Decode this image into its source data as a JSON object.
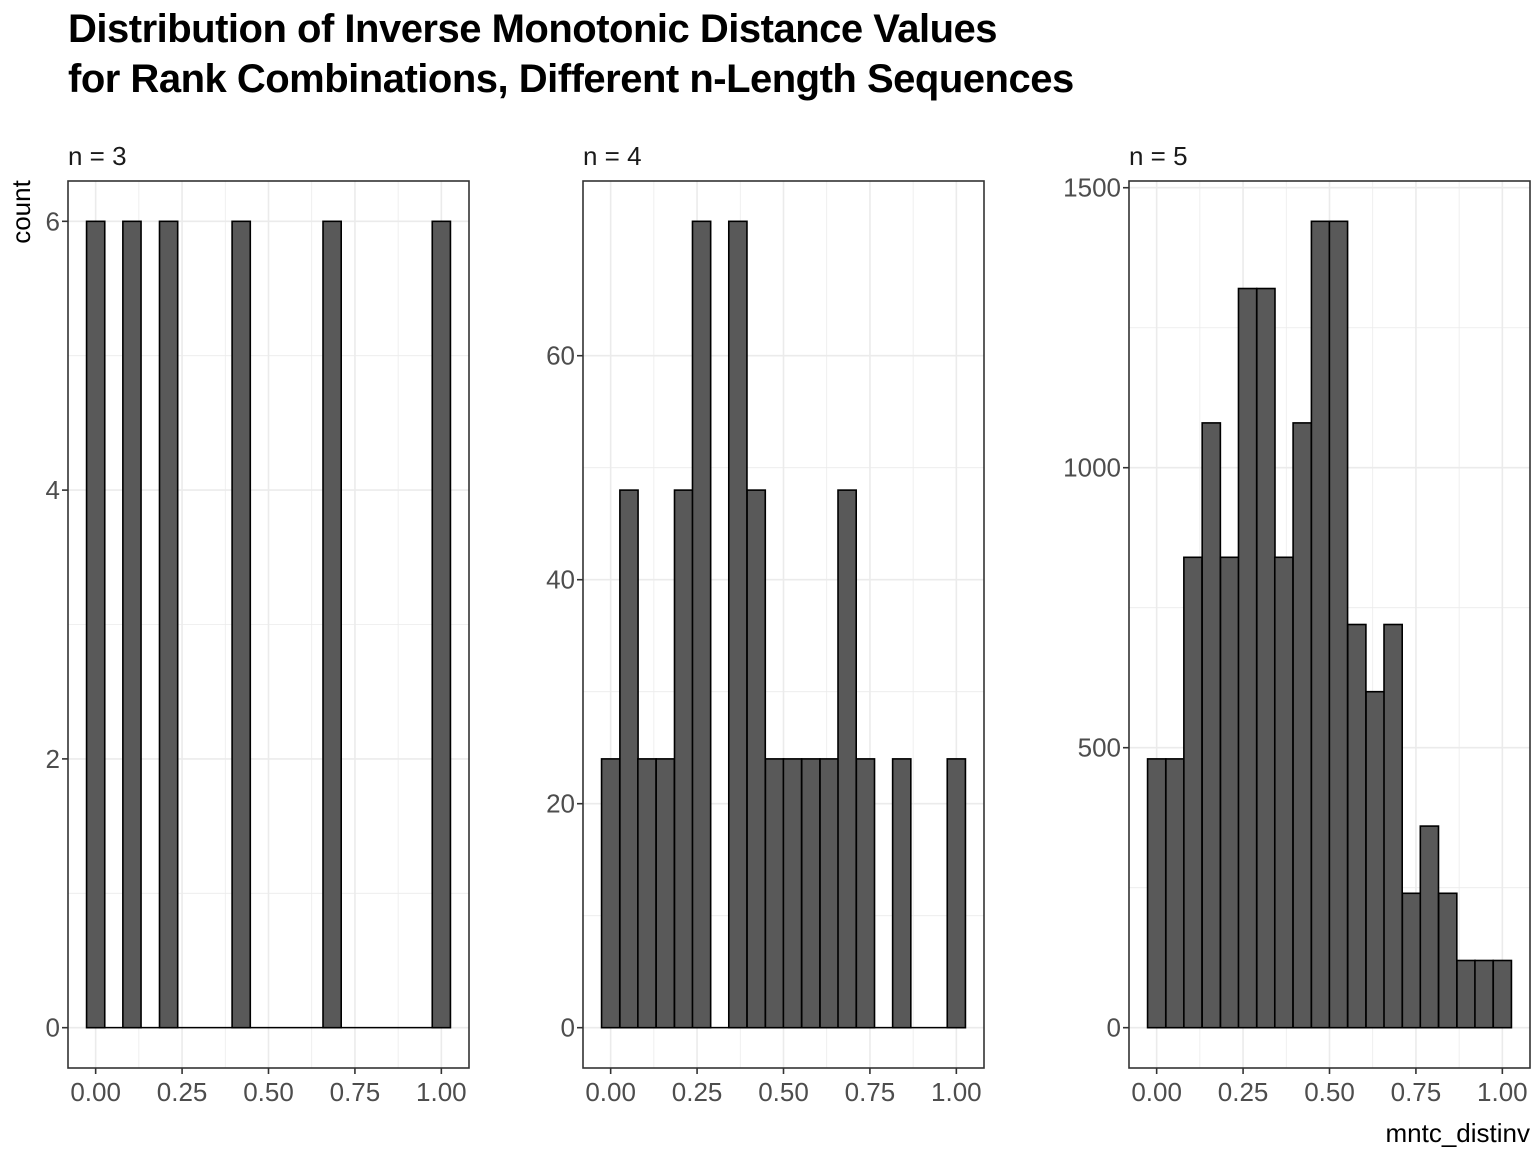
{
  "title": {
    "line1": "Distribution of Inverse Monotonic Distance Values",
    "line2": "for Rank Combinations, Different n-Length Sequences"
  },
  "colors": {
    "bar_fill": "#595959",
    "bar_stroke": "#000000",
    "grid": "#ebebeb",
    "panel_border": "#333333"
  },
  "chart_data": {
    "type": "bar",
    "title": "Distribution of Inverse Monotonic Distance Values for Rank Combinations, Different n-Length Sequences",
    "xlabel": "mntc_distinv",
    "ylabel": "count",
    "grid": true,
    "panels": [
      {
        "label": "n = 3",
        "xlim": [
          -0.08,
          1.08
        ],
        "ylim": [
          -0.3,
          6.3
        ],
        "x_ticks": [
          "0.00",
          "0.25",
          "0.50",
          "0.75",
          "1.00"
        ],
        "y_ticks": [
          0,
          2,
          4,
          6
        ],
        "bin_width": 0.0526,
        "bins": [
          {
            "x": 0.0,
            "count": 6
          },
          {
            "x": 0.105,
            "count": 6
          },
          {
            "x": 0.211,
            "count": 6
          },
          {
            "x": 0.316,
            "count": 0
          },
          {
            "x": 0.421,
            "count": 6
          },
          {
            "x": 0.526,
            "count": 0
          },
          {
            "x": 0.632,
            "count": 0
          },
          {
            "x": 0.684,
            "count": 6
          },
          {
            "x": 0.842,
            "count": 0
          },
          {
            "x": 1.0,
            "count": 6
          }
        ]
      },
      {
        "label": "n = 4",
        "xlim": [
          -0.08,
          1.08
        ],
        "ylim": [
          -3.6,
          75.6
        ],
        "x_ticks": [
          "0.00",
          "0.25",
          "0.50",
          "0.75",
          "1.00"
        ],
        "y_ticks": [
          0,
          20,
          40,
          60
        ],
        "bin_width": 0.0526,
        "bins": [
          {
            "x": 0.0,
            "count": 24
          },
          {
            "x": 0.053,
            "count": 48
          },
          {
            "x": 0.105,
            "count": 24
          },
          {
            "x": 0.158,
            "count": 24
          },
          {
            "x": 0.211,
            "count": 48
          },
          {
            "x": 0.263,
            "count": 72
          },
          {
            "x": 0.316,
            "count": 0
          },
          {
            "x": 0.368,
            "count": 72
          },
          {
            "x": 0.421,
            "count": 48
          },
          {
            "x": 0.474,
            "count": 24
          },
          {
            "x": 0.526,
            "count": 24
          },
          {
            "x": 0.579,
            "count": 24
          },
          {
            "x": 0.632,
            "count": 24
          },
          {
            "x": 0.684,
            "count": 48
          },
          {
            "x": 0.737,
            "count": 24
          },
          {
            "x": 0.789,
            "count": 0
          },
          {
            "x": 0.842,
            "count": 24
          },
          {
            "x": 0.895,
            "count": 0
          },
          {
            "x": 0.947,
            "count": 0
          },
          {
            "x": 1.0,
            "count": 24
          }
        ]
      },
      {
        "label": "n = 5",
        "xlim": [
          -0.08,
          1.08
        ],
        "ylim": [
          -72,
          1512
        ],
        "x_ticks": [
          "0.00",
          "0.25",
          "0.50",
          "0.75",
          "1.00"
        ],
        "y_ticks": [
          0,
          500,
          1000,
          1500
        ],
        "bin_width": 0.0526,
        "bins": [
          {
            "x": 0.0,
            "count": 480
          },
          {
            "x": 0.053,
            "count": 480
          },
          {
            "x": 0.105,
            "count": 840
          },
          {
            "x": 0.158,
            "count": 840
          },
          {
            "x": 0.158,
            "count": 1080
          },
          {
            "x": 0.211,
            "count": 840
          },
          {
            "x": 0.263,
            "count": 1320
          },
          {
            "x": 0.316,
            "count": 1320
          },
          {
            "x": 0.368,
            "count": 840
          },
          {
            "x": 0.421,
            "count": 1080
          },
          {
            "x": 0.474,
            "count": 1440
          },
          {
            "x": 0.526,
            "count": 1440
          },
          {
            "x": 0.579,
            "count": 720
          },
          {
            "x": 0.632,
            "count": 600
          },
          {
            "x": 0.684,
            "count": 720
          },
          {
            "x": 0.737,
            "count": 240
          },
          {
            "x": 0.789,
            "count": 360
          },
          {
            "x": 0.842,
            "count": 240
          },
          {
            "x": 0.895,
            "count": 120
          },
          {
            "x": 0.947,
            "count": 120
          },
          {
            "x": 1.0,
            "count": 120
          }
        ]
      }
    ]
  }
}
